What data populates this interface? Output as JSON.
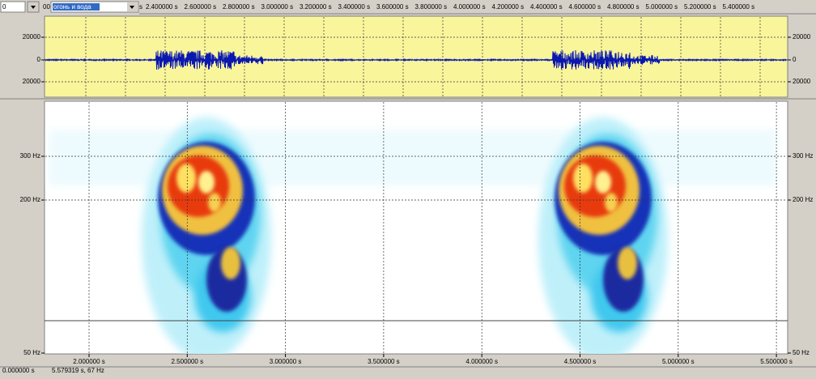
{
  "toolbar": {
    "position": "0",
    "field": "00",
    "selection": "огонь и вода"
  },
  "ruler": {
    "labels": [
      "s",
      "2.400000 s",
      "2.600000 s",
      "2.800000 s",
      "3.000000 s",
      "3.200000 s",
      "3.400000 s",
      "3.600000 s",
      "3.800000 s",
      "4.000000 s",
      "4.200000 s",
      "4.400000 s",
      "4.600000 s",
      "4.800000 s",
      "5.000000 s",
      "5.200000 s",
      "5.400000 s"
    ]
  },
  "waveform": {
    "left_ticks": [
      "20000",
      "0",
      "20000"
    ],
    "right_ticks": [
      "20000",
      "0",
      "20000"
    ]
  },
  "spectrogram": {
    "left_ticks": [
      "300 Hz",
      "200 Hz",
      "50 Hz"
    ],
    "right_ticks": [
      "300 Hz",
      "200 Hz",
      "50 Hz"
    ]
  },
  "time_axis": {
    "labels": [
      "2.000000 s",
      "2.500000 s",
      "3.000000 s",
      "3.500000 s",
      "4.000000 s",
      "4.500000 s",
      "5.000000 s",
      "5.500000 s"
    ]
  },
  "status": {
    "start": "0.000000 s",
    "cursor": "5.579319 s, 67 Hz"
  }
}
